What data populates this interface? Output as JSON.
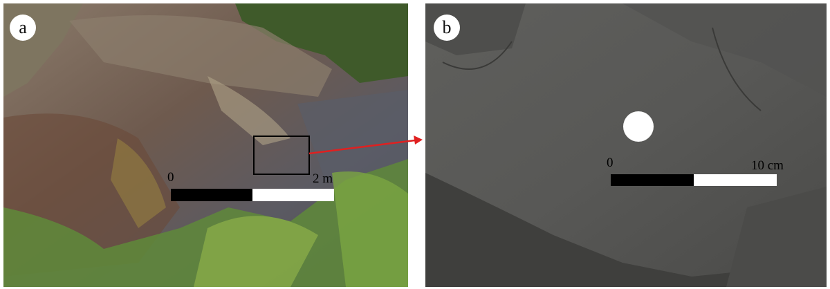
{
  "panels": [
    {
      "label": "a",
      "scale_start": "0",
      "scale_end": "2 m"
    },
    {
      "label": "b",
      "scale_start": "0",
      "scale_end": "10 cm"
    }
  ]
}
